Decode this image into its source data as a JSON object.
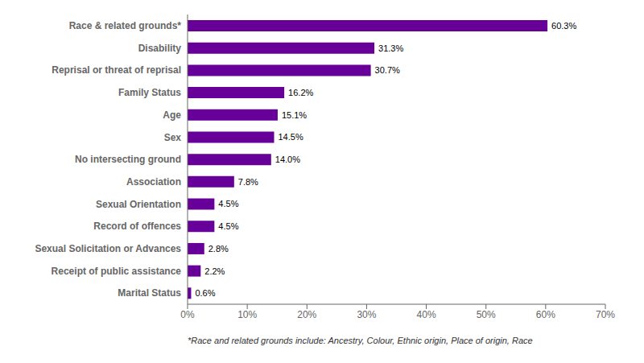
{
  "chart_data": {
    "type": "bar",
    "orientation": "horizontal",
    "categories": [
      "Race & related grounds*",
      "Disability",
      "Reprisal or threat of reprisal",
      "Family Status",
      "Age",
      "Sex",
      "No intersecting ground",
      "Association",
      "Sexual Orientation",
      "Record of offences",
      "Sexual Solicitation or Advances",
      "Receipt of public assistance",
      "Marital Status"
    ],
    "values": [
      60.3,
      31.3,
      30.7,
      16.2,
      15.1,
      14.5,
      14.0,
      7.8,
      4.5,
      4.5,
      2.8,
      2.2,
      0.6
    ],
    "value_labels": [
      "60.3%",
      "31.3%",
      "30.7%",
      "16.2%",
      "15.1%",
      "14.5%",
      "14.0%",
      "7.8%",
      "4.5%",
      "4.5%",
      "2.8%",
      "2.2%",
      "0.6%"
    ],
    "data_labels": true,
    "color": "#660099",
    "xlim": [
      0,
      70
    ],
    "xticks": [
      {
        "value": 0,
        "label": "0%"
      },
      {
        "value": 10,
        "label": "10%"
      },
      {
        "value": 20,
        "label": "20%"
      },
      {
        "value": 30,
        "label": "30%"
      },
      {
        "value": 40,
        "label": "40%"
      },
      {
        "value": 50,
        "label": "50%"
      },
      {
        "value": 60,
        "label": "60%"
      },
      {
        "value": 70,
        "label": "70%"
      }
    ],
    "annotations": [
      "*Race and related grounds include: Ancestry, Colour, Ethnic origin, Place of origin, Race"
    ]
  }
}
